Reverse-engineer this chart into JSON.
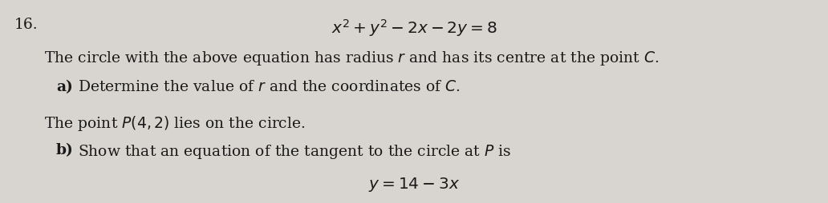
{
  "background_color": "#d8d5d0",
  "question_number": "16.",
  "equation_title": "$x^2+y^2-2x-2y=8$",
  "line1": "The circle with the above equation has radius $r$ and has its centre at the point $C$.",
  "line2_bold": "a)",
  "line2_normal": "Determine the value of $r$ and the coordinates of $C$.",
  "line3": "The point $P(4,2)$ lies on the circle.",
  "line4_bold": "b)",
  "line4_normal": "Show that an equation of the tangent to the circle at $P$ is",
  "line5": "$y=14-3x$",
  "text_color": "#1a1a1a",
  "fontsize": 13.5
}
